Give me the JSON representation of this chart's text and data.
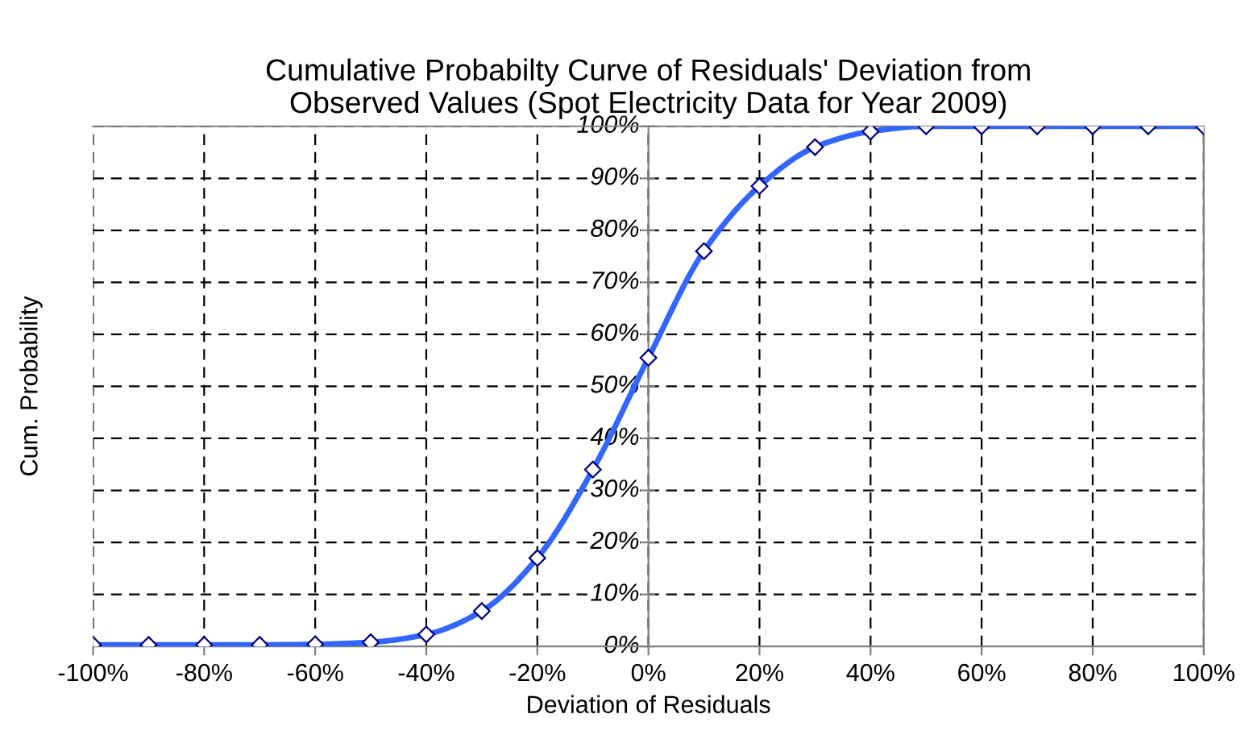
{
  "chart_data": {
    "type": "line",
    "title": "Cumulative Probabilty Curve of Residuals' Deviation from\nObserved Values (Spot Electricity Data for Year 2009)",
    "xlabel": "Deviation of Residuals",
    "ylabel": "Cum. Probability",
    "x": [
      -100,
      -90,
      -80,
      -70,
      -60,
      -50,
      -40,
      -30,
      -20,
      -10,
      0,
      10,
      20,
      30,
      40,
      50,
      60,
      70,
      80,
      90,
      100
    ],
    "series": [
      {
        "color": "#3366ff",
        "values": [
          0.3,
          0.3,
          0.3,
          0.3,
          0.4,
          0.8,
          2.3,
          6.8,
          17,
          34,
          55.5,
          76,
          88.5,
          96,
          99,
          100,
          100,
          100,
          100,
          100,
          100
        ]
      }
    ],
    "xlim": [
      -100,
      100
    ],
    "ylim": [
      0,
      100
    ],
    "xticks": [
      {
        "value": -100,
        "label": "-100%"
      },
      {
        "value": -80,
        "label": "-80%"
      },
      {
        "value": -60,
        "label": "-60%"
      },
      {
        "value": -40,
        "label": "-40%"
      },
      {
        "value": -20,
        "label": "-20%"
      },
      {
        "value": 0,
        "label": "0%"
      },
      {
        "value": 20,
        "label": "20%"
      },
      {
        "value": 40,
        "label": "40%"
      },
      {
        "value": 60,
        "label": "60%"
      },
      {
        "value": 80,
        "label": "80%"
      },
      {
        "value": 100,
        "label": "100%"
      }
    ],
    "yticks": [
      {
        "value": 0,
        "label": "0%"
      },
      {
        "value": 10,
        "label": "10%"
      },
      {
        "value": 20,
        "label": "20%"
      },
      {
        "value": 30,
        "label": "30%"
      },
      {
        "value": 40,
        "label": "40%"
      },
      {
        "value": 50,
        "label": "50%"
      },
      {
        "value": 60,
        "label": "60%"
      },
      {
        "value": 70,
        "label": "70%"
      },
      {
        "value": 80,
        "label": "80%"
      },
      {
        "value": 90,
        "label": "90%"
      },
      {
        "value": 100,
        "label": "100%"
      }
    ],
    "grid": true,
    "marker": "diamond",
    "line_style": "solid",
    "legend": false
  }
}
